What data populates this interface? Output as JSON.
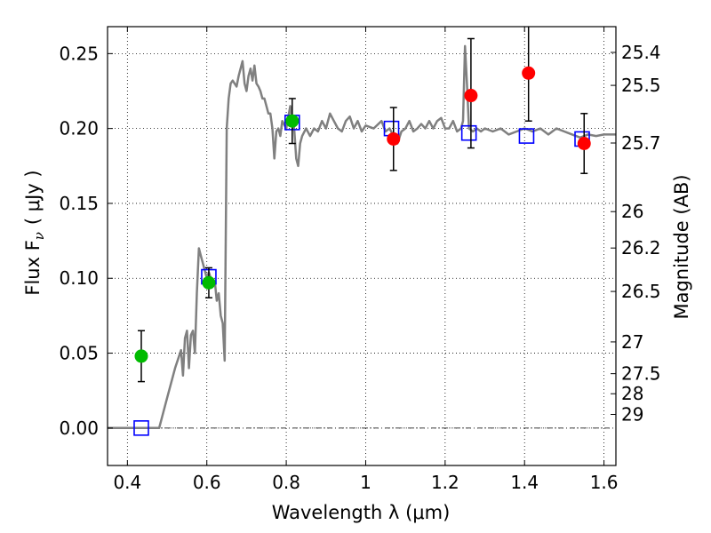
{
  "chart_data": {
    "type": "scatter",
    "title": "",
    "xlabel": "Wavelength  λ (μm)",
    "ylabel": "Flux  F",
    "ylabel_sub": "ν",
    "ylabel_unit": "( μJy )",
    "y2label": "Magnitude (AB)",
    "xlim": [
      0.35,
      1.63
    ],
    "ylim": [
      -0.025,
      0.268
    ],
    "grid": true,
    "x_ticks": [
      0.4,
      0.6,
      0.8,
      1.0,
      1.2,
      1.4,
      1.6
    ],
    "x_tick_labels": [
      "0.4",
      "0.6",
      "0.8",
      "1",
      "1.2",
      "1.4",
      "1.6"
    ],
    "y_ticks": [
      0.0,
      0.05,
      0.1,
      0.15,
      0.2,
      0.25
    ],
    "y_tick_labels": [
      "0.00",
      "0.05",
      "0.10",
      "0.15",
      "0.20",
      "0.25"
    ],
    "mag_ticks": [
      {
        "label": "25.4",
        "flux": 0.2508
      },
      {
        "label": "25.5",
        "flux": 0.2288
      },
      {
        "label": "25.7",
        "flux": 0.1903
      },
      {
        "label": "26",
        "flux": 0.1445
      },
      {
        "label": "26.2",
        "flux": 0.1202
      },
      {
        "label": "26.5",
        "flux": 0.0912
      },
      {
        "label": "27",
        "flux": 0.0575
      },
      {
        "label": "27.5",
        "flux": 0.0363
      },
      {
        "label": "28",
        "flux": 0.0229
      },
      {
        "label": "29",
        "flux": 0.0091
      }
    ],
    "series": [
      {
        "type": "line",
        "color": "#808080",
        "points": [
          [
            0.35,
            0.0
          ],
          [
            0.48,
            0.0
          ],
          [
            0.5,
            0.02
          ],
          [
            0.52,
            0.04
          ],
          [
            0.535,
            0.052
          ],
          [
            0.54,
            0.035
          ],
          [
            0.545,
            0.06
          ],
          [
            0.55,
            0.065
          ],
          [
            0.555,
            0.04
          ],
          [
            0.56,
            0.062
          ],
          [
            0.565,
            0.065
          ],
          [
            0.57,
            0.05
          ],
          [
            0.575,
            0.09
          ],
          [
            0.58,
            0.12
          ],
          [
            0.585,
            0.115
          ],
          [
            0.59,
            0.11
          ],
          [
            0.595,
            0.105
          ],
          [
            0.6,
            0.1
          ],
          [
            0.605,
            0.104
          ],
          [
            0.61,
            0.1
          ],
          [
            0.615,
            0.095
          ],
          [
            0.62,
            0.098
          ],
          [
            0.625,
            0.085
          ],
          [
            0.63,
            0.09
          ],
          [
            0.635,
            0.075
          ],
          [
            0.64,
            0.07
          ],
          [
            0.645,
            0.045
          ],
          [
            0.65,
            0.2
          ],
          [
            0.655,
            0.22
          ],
          [
            0.66,
            0.23
          ],
          [
            0.665,
            0.232
          ],
          [
            0.675,
            0.228
          ],
          [
            0.68,
            0.235
          ],
          [
            0.685,
            0.24
          ],
          [
            0.69,
            0.245
          ],
          [
            0.695,
            0.23
          ],
          [
            0.7,
            0.225
          ],
          [
            0.705,
            0.235
          ],
          [
            0.71,
            0.24
          ],
          [
            0.715,
            0.232
          ],
          [
            0.72,
            0.242
          ],
          [
            0.725,
            0.23
          ],
          [
            0.73,
            0.228
          ],
          [
            0.735,
            0.225
          ],
          [
            0.74,
            0.22
          ],
          [
            0.745,
            0.22
          ],
          [
            0.75,
            0.215
          ],
          [
            0.755,
            0.21
          ],
          [
            0.76,
            0.21
          ],
          [
            0.765,
            0.2
          ],
          [
            0.77,
            0.18
          ],
          [
            0.775,
            0.198
          ],
          [
            0.78,
            0.2
          ],
          [
            0.785,
            0.195
          ],
          [
            0.79,
            0.205
          ],
          [
            0.8,
            0.2
          ],
          [
            0.81,
            0.215
          ],
          [
            0.815,
            0.205
          ],
          [
            0.82,
            0.2
          ],
          [
            0.825,
            0.18
          ],
          [
            0.83,
            0.175
          ],
          [
            0.835,
            0.19
          ],
          [
            0.84,
            0.195
          ],
          [
            0.85,
            0.2
          ],
          [
            0.86,
            0.195
          ],
          [
            0.87,
            0.2
          ],
          [
            0.88,
            0.198
          ],
          [
            0.89,
            0.205
          ],
          [
            0.9,
            0.2
          ],
          [
            0.91,
            0.21
          ],
          [
            0.92,
            0.205
          ],
          [
            0.93,
            0.2
          ],
          [
            0.94,
            0.198
          ],
          [
            0.95,
            0.205
          ],
          [
            0.96,
            0.208
          ],
          [
            0.97,
            0.2
          ],
          [
            0.98,
            0.205
          ],
          [
            0.99,
            0.198
          ],
          [
            1.0,
            0.202
          ],
          [
            1.02,
            0.2
          ],
          [
            1.04,
            0.205
          ],
          [
            1.05,
            0.198
          ],
          [
            1.06,
            0.2
          ],
          [
            1.07,
            0.195
          ],
          [
            1.08,
            0.19
          ],
          [
            1.09,
            0.198
          ],
          [
            1.1,
            0.2
          ],
          [
            1.11,
            0.205
          ],
          [
            1.12,
            0.198
          ],
          [
            1.13,
            0.2
          ],
          [
            1.14,
            0.203
          ],
          [
            1.15,
            0.2
          ],
          [
            1.16,
            0.205
          ],
          [
            1.17,
            0.2
          ],
          [
            1.18,
            0.205
          ],
          [
            1.19,
            0.207
          ],
          [
            1.2,
            0.2
          ],
          [
            1.21,
            0.2
          ],
          [
            1.22,
            0.205
          ],
          [
            1.23,
            0.198
          ],
          [
            1.24,
            0.2
          ],
          [
            1.245,
            0.205
          ],
          [
            1.25,
            0.255
          ],
          [
            1.255,
            0.23
          ],
          [
            1.26,
            0.2
          ],
          [
            1.27,
            0.198
          ],
          [
            1.28,
            0.2
          ],
          [
            1.29,
            0.198
          ],
          [
            1.3,
            0.2
          ],
          [
            1.32,
            0.198
          ],
          [
            1.34,
            0.2
          ],
          [
            1.36,
            0.196
          ],
          [
            1.38,
            0.198
          ],
          [
            1.4,
            0.2
          ],
          [
            1.42,
            0.198
          ],
          [
            1.44,
            0.2
          ],
          [
            1.46,
            0.196
          ],
          [
            1.48,
            0.2
          ],
          [
            1.5,
            0.198
          ],
          [
            1.52,
            0.196
          ],
          [
            1.54,
            0.194
          ],
          [
            1.56,
            0.196
          ],
          [
            1.58,
            0.195
          ],
          [
            1.6,
            0.196
          ],
          [
            1.63,
            0.196
          ]
        ]
      },
      {
        "type": "markers",
        "marker": "square",
        "color": "#0000ff",
        "points": [
          [
            0.435,
            0.0
          ],
          [
            0.605,
            0.101
          ],
          [
            0.815,
            0.204
          ],
          [
            1.065,
            0.2
          ],
          [
            1.26,
            0.197
          ],
          [
            1.405,
            0.195
          ],
          [
            1.545,
            0.193
          ]
        ]
      },
      {
        "type": "markers",
        "marker": "circle",
        "color": "#00bb00",
        "points": [
          {
            "x": 0.435,
            "y": 0.048,
            "err": 0.017
          },
          {
            "x": 0.605,
            "y": 0.097,
            "err": 0.01
          },
          {
            "x": 0.815,
            "y": 0.205,
            "err": 0.015
          }
        ]
      },
      {
        "type": "markers",
        "marker": "circle",
        "color": "#ff0000",
        "points": [
          {
            "x": 1.07,
            "y": 0.193,
            "err": 0.021
          },
          {
            "x": 1.265,
            "y": 0.222,
            "err": [
              0.035,
              0.038
            ]
          },
          {
            "x": 1.41,
            "y": 0.237,
            "err": [
              0.032,
              0.04
            ]
          },
          {
            "x": 1.55,
            "y": 0.19,
            "err": 0.02
          }
        ]
      }
    ]
  }
}
